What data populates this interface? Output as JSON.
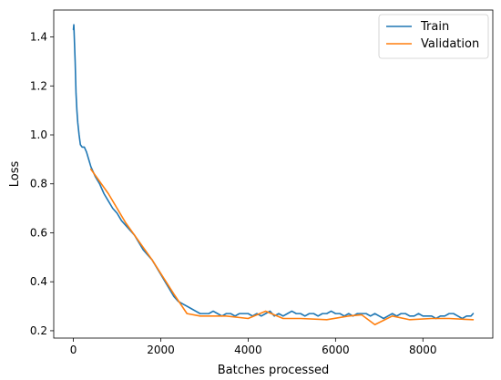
{
  "chart_data": {
    "type": "line",
    "title": "",
    "xlabel": "Batches processed",
    "ylabel": "Loss",
    "xlim": [
      -450,
      9600
    ],
    "ylim": [
      0.17,
      1.51
    ],
    "xticks": [
      0,
      2000,
      4000,
      6000,
      8000
    ],
    "yticks": [
      0.2,
      0.4,
      0.6,
      0.8,
      1.0,
      1.2,
      1.4
    ],
    "xtick_labels": [
      "0",
      "2000",
      "4000",
      "6000",
      "8000"
    ],
    "ytick_labels": [
      "0.2",
      "0.4",
      "0.6",
      "0.8",
      "1.0",
      "1.2",
      "1.4"
    ],
    "grid": false,
    "legend_position": "top-right",
    "series": [
      {
        "name": "Train",
        "color": "#1f77b4",
        "x": [
          0,
          10,
          20,
          40,
          60,
          80,
          100,
          130,
          160,
          200,
          250,
          300,
          350,
          400,
          450,
          500,
          600,
          700,
          800,
          900,
          1000,
          1100,
          1200,
          1300,
          1400,
          1500,
          1600,
          1700,
          1800,
          1900,
          2000,
          2100,
          2200,
          2300,
          2400,
          2500,
          2600,
          2700,
          2800,
          2900,
          3000,
          3100,
          3200,
          3300,
          3400,
          3500,
          3600,
          3700,
          3800,
          3900,
          4000,
          4100,
          4200,
          4300,
          4400,
          4500,
          4600,
          4700,
          4800,
          4900,
          5000,
          5100,
          5200,
          5300,
          5400,
          5500,
          5600,
          5700,
          5800,
          5900,
          6000,
          6100,
          6200,
          6300,
          6400,
          6500,
          6600,
          6700,
          6800,
          6900,
          7000,
          7100,
          7200,
          7300,
          7400,
          7500,
          7600,
          7700,
          7800,
          7900,
          8000,
          8100,
          8200,
          8300,
          8400,
          8500,
          8600,
          8700,
          8800,
          8900,
          9000,
          9100,
          9150
        ],
        "y": [
          1.43,
          1.45,
          1.4,
          1.3,
          1.17,
          1.1,
          1.05,
          1.0,
          0.96,
          0.95,
          0.95,
          0.93,
          0.9,
          0.87,
          0.85,
          0.83,
          0.8,
          0.76,
          0.73,
          0.7,
          0.68,
          0.65,
          0.63,
          0.61,
          0.59,
          0.56,
          0.53,
          0.51,
          0.49,
          0.46,
          0.43,
          0.4,
          0.37,
          0.34,
          0.32,
          0.31,
          0.3,
          0.29,
          0.28,
          0.27,
          0.27,
          0.27,
          0.28,
          0.27,
          0.26,
          0.27,
          0.27,
          0.26,
          0.27,
          0.27,
          0.27,
          0.26,
          0.27,
          0.26,
          0.27,
          0.28,
          0.26,
          0.27,
          0.26,
          0.27,
          0.28,
          0.27,
          0.27,
          0.26,
          0.27,
          0.27,
          0.26,
          0.27,
          0.27,
          0.28,
          0.27,
          0.27,
          0.26,
          0.27,
          0.26,
          0.27,
          0.27,
          0.27,
          0.26,
          0.27,
          0.26,
          0.25,
          0.26,
          0.27,
          0.26,
          0.27,
          0.27,
          0.26,
          0.26,
          0.27,
          0.26,
          0.26,
          0.26,
          0.25,
          0.26,
          0.26,
          0.27,
          0.27,
          0.26,
          0.25,
          0.26,
          0.26,
          0.27
        ]
      },
      {
        "name": "Validation",
        "color": "#ff7f0e",
        "x": [
          400,
          800,
          1200,
          1800,
          2300,
          2600,
          2900,
          3500,
          4000,
          4400,
          4800,
          5200,
          5800,
          6300,
          6600,
          6900,
          7300,
          7700,
          8200,
          8600,
          9150
        ],
        "y": [
          0.86,
          0.76,
          0.64,
          0.49,
          0.35,
          0.27,
          0.26,
          0.26,
          0.25,
          0.28,
          0.25,
          0.25,
          0.245,
          0.26,
          0.265,
          0.225,
          0.26,
          0.245,
          0.25,
          0.25,
          0.245
        ]
      }
    ]
  }
}
